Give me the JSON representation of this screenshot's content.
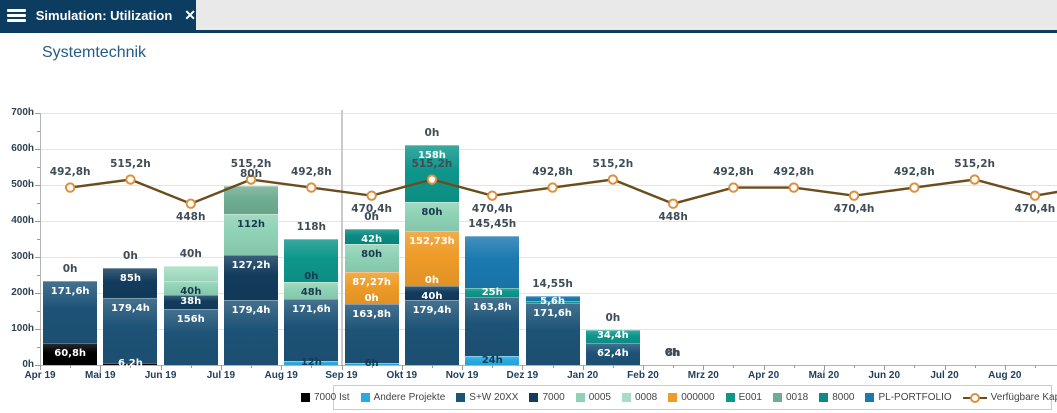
{
  "header": {
    "tab_title": "Simulation: Utilization",
    "close_label": "✕"
  },
  "page_title": "Systemtechnik",
  "colors": {
    "7000 Ist": "#000000",
    "Andere Projekte": "#29abe2",
    "S+W 20XX": "#1d5377",
    "7000": "#123c5d",
    "0005": "#8ed2b5",
    "0008": "#a5dec4",
    "000000": "#ee9b27",
    "E001": "#0e968b",
    "0018": "#6fad92",
    "8000": "#0b8b82",
    "PL-PORTFOLIO": "#1b79b0",
    "capacity_line": "#6b4d1d",
    "capacity_marker": "#dc8f3f",
    "marker_fill": "#fffef8"
  },
  "chart_data": {
    "type": "bar",
    "subtype": "stacked bars with capacity line overlay",
    "title": "Systemtechnik",
    "unit": "h",
    "grid": true,
    "y_axis": {
      "min": 0,
      "max": 700,
      "step": 100,
      "labels": [
        "0h",
        "100h",
        "200h",
        "300h",
        "400h",
        "500h",
        "600h",
        "700h"
      ]
    },
    "categories": [
      "Apr 19",
      "Mai 19",
      "Jun 19",
      "Jul 19",
      "Aug 19",
      "Sep 19",
      "Okt 19",
      "Nov 19",
      "Dez 19",
      "Jan 20",
      "Feb 20",
      "Mrz 20",
      "Apr 20",
      "Mai 20",
      "Jun 20",
      "Jul 20",
      "Aug 20"
    ],
    "divider_before_category": "Sep 19",
    "bars": [
      {
        "category": "Apr 19",
        "above_label": "0h",
        "segments": [
          {
            "series": "7000 Ist",
            "value": 60.8,
            "label": "60,8h",
            "label_style": "light"
          },
          {
            "series": "S+W 20XX",
            "value": 171.6,
            "label": "171,6h",
            "label_style": "light"
          }
        ]
      },
      {
        "category": "Mai 19",
        "above_label": "0h",
        "segments": [
          {
            "series": "7000 Ist",
            "value": 6.2,
            "label": "6,2h",
            "label_style": "light"
          },
          {
            "series": "S+W 20XX",
            "value": 179.4,
            "label": "179,4h",
            "label_style": "light"
          },
          {
            "series": "7000",
            "value": 85,
            "label": "85h",
            "label_style": "light"
          }
        ]
      },
      {
        "category": "Jun 19",
        "above_label": "40h",
        "segments": [
          {
            "series": "S+W 20XX",
            "value": 156,
            "label": "156h",
            "label_style": "light"
          },
          {
            "series": "7000",
            "value": 38,
            "label": "38h",
            "label_style": "light"
          },
          {
            "series": "0005",
            "value": 40,
            "label": "40h",
            "label_style": "dark"
          },
          {
            "series": "0008",
            "value": 40
          }
        ]
      },
      {
        "category": "Jul 19",
        "above_label": "80h",
        "segments": [
          {
            "series": "S+W 20XX",
            "value": 179.4,
            "label": "179,4h",
            "label_style": "light"
          },
          {
            "series": "7000",
            "value": 127.2,
            "label": "127,2h",
            "label_style": "light"
          },
          {
            "series": "0005",
            "value": 112,
            "label": "112h",
            "label_style": "dark"
          },
          {
            "series": "0018",
            "value": 80
          }
        ]
      },
      {
        "category": "Aug 19",
        "above_label": "118h",
        "segments": [
          {
            "series": "Andere Projekte",
            "value": 12,
            "label": "12h",
            "label_style": "dark"
          },
          {
            "series": "S+W 20XX",
            "value": 171.6,
            "label": "171,6h",
            "label_style": "light"
          },
          {
            "series": "0005",
            "value": 48,
            "label": "48h",
            "label_style": "dark"
          },
          {
            "series": "0008",
            "value": 0,
            "label": "0h",
            "label_style": "dark"
          },
          {
            "series": "E001",
            "value": 118
          }
        ]
      },
      {
        "category": "Sep 19",
        "above_label": "0h",
        "segments": [
          {
            "series": "Andere Projekte",
            "value": 6,
            "label": "6h",
            "label_style": "dark"
          },
          {
            "series": "S+W 20XX",
            "value": 163.8,
            "label": "163,8h",
            "label_style": "light"
          },
          {
            "series": "E001",
            "value": 0,
            "label": "0h",
            "label_style": "light"
          },
          {
            "series": "000000",
            "value": 87.27,
            "label": "87,27h",
            "label_style": "light"
          },
          {
            "series": "0005",
            "value": 80,
            "label": "80h",
            "label_style": "dark"
          },
          {
            "series": "8000",
            "value": 42,
            "label": "42h",
            "label_style": "light"
          }
        ]
      },
      {
        "category": "Okt 19",
        "above_label": "0h",
        "segments": [
          {
            "series": "S+W 20XX",
            "value": 179.4,
            "label": "179,4h",
            "label_style": "light"
          },
          {
            "series": "7000",
            "value": 40,
            "label": "40h",
            "label_style": "light"
          },
          {
            "series": "E001",
            "value": 0,
            "label": "0h",
            "label_style": "light"
          },
          {
            "series": "000000",
            "value": 152.73,
            "label": "152,73h",
            "label_style": "light"
          },
          {
            "series": "0005",
            "value": 80,
            "label": "80h",
            "label_style": "dark"
          },
          {
            "series": "E001",
            "value": 158,
            "label": "158h",
            "label_style": "light"
          }
        ]
      },
      {
        "category": "Nov 19",
        "above_label": "145,45h",
        "segments": [
          {
            "series": "Andere Projekte",
            "value": 24,
            "label": "24h",
            "label_style": "dark"
          },
          {
            "series": "S+W 20XX",
            "value": 163.8,
            "label": "163,8h",
            "label_style": "light"
          },
          {
            "series": "E001",
            "value": 25,
            "label": "25h",
            "label_style": "light"
          },
          {
            "series": "PL-PORTFOLIO",
            "value": 145.45
          }
        ]
      },
      {
        "category": "Dez 19",
        "above_label": "14,55h",
        "segments": [
          {
            "series": "S+W 20XX",
            "value": 171.6,
            "label": "171,6h",
            "label_style": "light"
          },
          {
            "series": "E001",
            "value": 5.6,
            "label": "5,6h",
            "label_style": "light"
          },
          {
            "series": "PL-PORTFOLIO",
            "value": 14.55
          }
        ]
      },
      {
        "category": "Jan 20",
        "above_label": "0h",
        "segments": [
          {
            "series": "S+W 20XX",
            "value": 62.4,
            "label": "62,4h",
            "label_style": "light"
          },
          {
            "series": "E001",
            "value": 34.4,
            "label": "34,4h",
            "label_style": "light"
          }
        ]
      },
      {
        "category": "Feb 20",
        "above_label": "8h",
        "above_label2": "0h",
        "segments": []
      },
      {
        "category": "Mrz 20",
        "segments": []
      },
      {
        "category": "Apr 20",
        "segments": []
      },
      {
        "category": "Mai 20",
        "segments": []
      },
      {
        "category": "Jun 20",
        "segments": []
      },
      {
        "category": "Jul 20",
        "segments": []
      },
      {
        "category": "Aug 20",
        "segments": []
      }
    ],
    "capacity_line": {
      "name": "Verfügbare Kapazität",
      "points": [
        {
          "category": "Apr 19",
          "value": 492.8,
          "label": "492,8h",
          "label_pos": "above"
        },
        {
          "category": "Mai 19",
          "value": 515.2,
          "label": "515,2h",
          "label_pos": "above"
        },
        {
          "category": "Jun 19",
          "value": 448,
          "label": "448h",
          "label_pos": "below"
        },
        {
          "category": "Jul 19",
          "value": 515.2,
          "label": "515,2h",
          "label_pos": "above"
        },
        {
          "category": "Aug 19",
          "value": 492.8,
          "label": "492,8h",
          "label_pos": "above"
        },
        {
          "category": "Sep 19",
          "value": 470.4,
          "label": "470,4h",
          "label_pos": "below"
        },
        {
          "category": "Okt 19",
          "value": 515.2,
          "label": "515,2h",
          "label_pos": "above"
        },
        {
          "category": "Nov 19",
          "value": 470.4,
          "label": "470,4h",
          "label_pos": "below"
        },
        {
          "category": "Dez 19",
          "value": 492.8,
          "label": "492,8h",
          "label_pos": "above"
        },
        {
          "category": "Jan 20",
          "value": 515.2,
          "label": "515,2h",
          "label_pos": "above"
        },
        {
          "category": "Feb 20",
          "value": 448,
          "label": "448h",
          "label_pos": "below"
        },
        {
          "category": "Mrz 20",
          "value": 492.8,
          "label": "492,8h",
          "label_pos": "above"
        },
        {
          "category": "Apr 20",
          "value": 492.8,
          "label": "492,8h",
          "label_pos": "above"
        },
        {
          "category": "Mai 20",
          "value": 470.4,
          "label": "470,4h",
          "label_pos": "below"
        },
        {
          "category": "Jun 20",
          "value": 492.8,
          "label": "492,8h",
          "label_pos": "above"
        },
        {
          "category": "Jul 20",
          "value": 515.2,
          "label": "515,2h",
          "label_pos": "above"
        },
        {
          "category": "Aug 20",
          "value": 470.4,
          "label": "470,4h",
          "label_pos": "below"
        }
      ]
    }
  },
  "legend": {
    "items": [
      {
        "label": "7000 Ist",
        "series": "7000 Ist",
        "type": "swatch"
      },
      {
        "label": "Andere Projekte",
        "series": "Andere Projekte",
        "type": "swatch"
      },
      {
        "label": "S+W 20XX",
        "series": "S+W 20XX",
        "type": "swatch"
      },
      {
        "label": "7000",
        "series": "7000",
        "type": "swatch"
      },
      {
        "label": "0005",
        "series": "0005",
        "type": "swatch"
      },
      {
        "label": "0008",
        "series": "0008",
        "type": "swatch"
      },
      {
        "label": "000000",
        "series": "000000",
        "type": "swatch"
      },
      {
        "label": "E001",
        "series": "E001",
        "type": "swatch"
      },
      {
        "label": "0018",
        "series": "0018",
        "type": "swatch"
      },
      {
        "label": "8000",
        "series": "8000",
        "type": "swatch"
      },
      {
        "label": "PL-PORTFOLIO",
        "series": "PL-PORTFOLIO",
        "type": "swatch"
      },
      {
        "label": "Verfügbare Kapazität",
        "series": "capacity_line",
        "type": "line"
      }
    ]
  }
}
